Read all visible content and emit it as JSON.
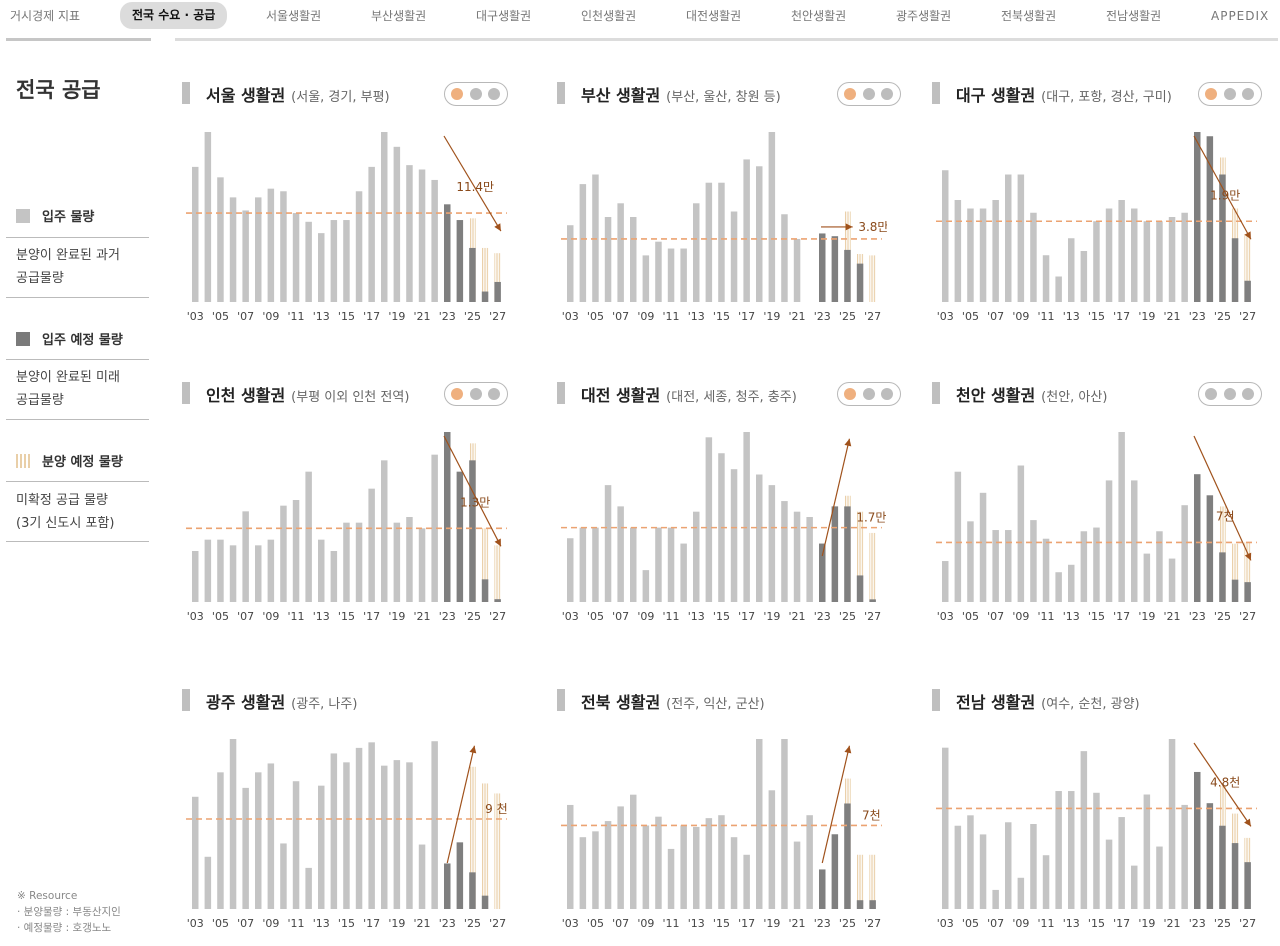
{
  "nav": {
    "items": [
      {
        "label": "거시경제 지표",
        "active": false
      },
      {
        "label": "전국 수요 · 공급",
        "active": true
      },
      {
        "label": "서울생활권",
        "active": false
      },
      {
        "label": "부산생활권",
        "active": false
      },
      {
        "label": "대구생활권",
        "active": false
      },
      {
        "label": "인천생활권",
        "active": false
      },
      {
        "label": "대전생활권",
        "active": false
      },
      {
        "label": "천안생활권",
        "active": false
      },
      {
        "label": "광주생활권",
        "active": false
      },
      {
        "label": "전북생활권",
        "active": false
      },
      {
        "label": "전남생활권",
        "active": false
      },
      {
        "label": "APPEDIX",
        "active": false
      }
    ]
  },
  "sidebar": {
    "title": "전국 공급",
    "legend": [
      {
        "label": "입주 물량",
        "swatch": "light",
        "desc": [
          "분양이 완료된 과거",
          "공급물량"
        ]
      },
      {
        "label": "입주 예정 물량",
        "swatch": "dark",
        "desc": [
          "분양이 완료된 미래",
          "공급물량"
        ]
      },
      {
        "label": "분양 예정 물량",
        "swatch": "hatched",
        "desc": [
          "미확정 공급 물량",
          "(3기 신도시 포함)"
        ]
      }
    ],
    "resource": {
      "title": "※ Resource",
      "lines": [
        "· 분양물량 : 부동산지인",
        "· 예정물량 : 호갱노노"
      ]
    }
  },
  "colors": {
    "bar_past": "#c4c4c4",
    "bar_planned": "#7f7f7f",
    "bar_upcoming": "#e9cfa8",
    "average_line": "#eba372",
    "trend_arrow": "#a0521c",
    "annotation_text": "#8a4a1b",
    "dot_active": "#efb07f",
    "dot_inactive": "#bdbdbd"
  },
  "chart_data": [
    {
      "type": "bar",
      "title": "서울 생활권",
      "subtitle": "(서울, 경기, 부평)",
      "x_tick_labels": [
        "'03",
        "'05",
        "'07",
        "'09",
        "'11",
        "'13",
        "'15",
        "'17",
        "'19",
        "'21",
        "'23",
        "'25",
        "'27"
      ],
      "years": [
        2003,
        2004,
        2005,
        2006,
        2007,
        2008,
        2009,
        2010,
        2011,
        2012,
        2013,
        2014,
        2015,
        2016,
        2017,
        2018,
        2019,
        2020,
        2021,
        2022,
        2023,
        2024,
        2025,
        2026,
        2027
      ],
      "past": [
        15.5,
        19.5,
        14.3,
        12,
        10.5,
        12,
        13,
        12.7,
        10.2,
        9.2,
        7.9,
        9.4,
        9.4,
        12.7,
        15.5,
        19.5,
        17.8,
        15.7,
        15.2,
        14,
        11.2,
        null,
        null,
        null,
        null
      ],
      "planned": [
        null,
        null,
        null,
        null,
        null,
        null,
        null,
        null,
        null,
        null,
        null,
        null,
        null,
        null,
        null,
        null,
        null,
        null,
        null,
        null,
        11.2,
        9.4,
        6.2,
        1.2,
        2.3
      ],
      "upcoming": [
        null,
        null,
        null,
        null,
        null,
        null,
        null,
        null,
        null,
        null,
        null,
        null,
        null,
        null,
        null,
        null,
        null,
        null,
        null,
        null,
        null,
        null,
        9.6,
        6.2,
        5.6
      ],
      "average": 10.2,
      "annotation": "11.4만",
      "active_dots": 1,
      "trend": "down"
    },
    {
      "type": "bar",
      "title": "부산 생활권",
      "subtitle": "(부산, 울산, 창원 등)",
      "x_tick_labels": [
        "'03",
        "'05",
        "'07",
        "'09",
        "'11",
        "'13",
        "'15",
        "'17",
        "'19",
        "'21",
        "'23",
        "'25",
        "'27"
      ],
      "years": [
        2003,
        2004,
        2005,
        2006,
        2007,
        2008,
        2009,
        2010,
        2011,
        2012,
        2013,
        2014,
        2015,
        2016,
        2017,
        2018,
        2019,
        2020,
        2021,
        2022,
        2023,
        2024,
        2025,
        2026,
        2027
      ],
      "past": [
        5.6,
        8.6,
        9.3,
        6.2,
        7.2,
        6.2,
        3.4,
        4.4,
        3.9,
        3.9,
        7.2,
        8.7,
        8.7,
        6.6,
        10.4,
        9.9,
        12.4,
        6.4,
        4.6,
        null,
        null,
        null,
        null,
        null,
        null
      ],
      "planned": [
        null,
        null,
        null,
        null,
        null,
        null,
        null,
        null,
        null,
        null,
        null,
        null,
        null,
        null,
        null,
        null,
        null,
        null,
        null,
        null,
        5,
        4.8,
        3.8,
        2.8,
        null
      ],
      "upcoming": [
        null,
        null,
        null,
        null,
        null,
        null,
        null,
        null,
        null,
        null,
        null,
        null,
        null,
        null,
        null,
        null,
        null,
        null,
        null,
        null,
        null,
        null,
        6.6,
        3.5,
        3.4
      ],
      "average": 4.6,
      "annotation": "3.8만",
      "active_dots": 1,
      "trend": "flat"
    },
    {
      "type": "bar",
      "title": "대구 생활권",
      "subtitle": "(대구, 포항, 경산, 구미)",
      "x_tick_labels": [
        "'03",
        "'05",
        "'07",
        "'09",
        "'11",
        "'13",
        "'15",
        "'17",
        "'19",
        "'21",
        "'23",
        "'25",
        "'27"
      ],
      "years": [
        2003,
        2004,
        2005,
        2006,
        2007,
        2008,
        2009,
        2010,
        2011,
        2012,
        2013,
        2014,
        2015,
        2016,
        2017,
        2018,
        2019,
        2020,
        2021,
        2022,
        2023,
        2024,
        2025,
        2026,
        2027
      ],
      "past": [
        3.1,
        2.4,
        2.2,
        2.2,
        2.4,
        3,
        3,
        2.1,
        1.1,
        0.6,
        1.5,
        1.2,
        1.9,
        2.2,
        2.4,
        2.2,
        1.9,
        1.9,
        2,
        2.1,
        null,
        null,
        null,
        null,
        null
      ],
      "planned": [
        null,
        null,
        null,
        null,
        null,
        null,
        null,
        null,
        null,
        null,
        null,
        null,
        null,
        null,
        null,
        null,
        null,
        null,
        null,
        null,
        4,
        3.9,
        3,
        1.5,
        0.5
      ],
      "upcoming": [
        null,
        null,
        null,
        null,
        null,
        null,
        null,
        null,
        null,
        null,
        null,
        null,
        null,
        null,
        null,
        null,
        null,
        null,
        null,
        null,
        null,
        null,
        3.4,
        2.2,
        1.6
      ],
      "average": 1.9,
      "annotation": "1.9만",
      "active_dots": 1,
      "trend": "down"
    },
    {
      "type": "bar",
      "title": "인천 생활권",
      "subtitle": "(부평 이외 인천 전역)",
      "x_tick_labels": [
        "'03",
        "'05",
        "'07",
        "'09",
        "'11",
        "'13",
        "'15",
        "'17",
        "'19",
        "'21",
        "'23",
        "'25",
        "'27"
      ],
      "years": [
        2003,
        2004,
        2005,
        2006,
        2007,
        2008,
        2009,
        2010,
        2011,
        2012,
        2013,
        2014,
        2015,
        2016,
        2017,
        2018,
        2019,
        2020,
        2021,
        2022,
        2023,
        2024,
        2025,
        2026,
        2027
      ],
      "past": [
        0.9,
        1.1,
        1.1,
        1,
        1.6,
        1,
        1.1,
        1.7,
        1.8,
        2.3,
        1.1,
        0.9,
        1.4,
        1.4,
        2,
        2.5,
        1.4,
        1.5,
        1.3,
        2.6,
        null,
        null,
        null,
        null,
        null
      ],
      "planned": [
        null,
        null,
        null,
        null,
        null,
        null,
        null,
        null,
        null,
        null,
        null,
        null,
        null,
        null,
        null,
        null,
        null,
        null,
        null,
        null,
        3,
        2.3,
        2.5,
        0.4,
        0.05
      ],
      "upcoming": [
        null,
        null,
        null,
        null,
        null,
        null,
        null,
        null,
        null,
        null,
        null,
        null,
        null,
        null,
        null,
        null,
        null,
        null,
        null,
        null,
        null,
        null,
        2.8,
        1.3,
        1
      ],
      "average": 1.3,
      "annotation": "1.3만",
      "active_dots": 1,
      "trend": "down"
    },
    {
      "type": "bar",
      "title": "대전 생활권",
      "subtitle": "(대전, 세종, 청주, 충주)",
      "x_tick_labels": [
        "'03",
        "'05",
        "'07",
        "'09",
        "'11",
        "'13",
        "'15",
        "'17",
        "'19",
        "'21",
        "'23",
        "'25",
        "'27"
      ],
      "years": [
        2003,
        2004,
        2005,
        2006,
        2007,
        2008,
        2009,
        2010,
        2011,
        2012,
        2013,
        2014,
        2015,
        2016,
        2017,
        2018,
        2019,
        2020,
        2021,
        2022,
        2023,
        2024,
        2025,
        2026,
        2027
      ],
      "past": [
        1.2,
        1.4,
        1.4,
        2.2,
        1.8,
        1.4,
        0.6,
        1.4,
        1.4,
        1.1,
        1.7,
        3.1,
        2.8,
        2.5,
        3.2,
        2.4,
        2.2,
        1.9,
        1.7,
        1.6,
        null,
        null,
        null,
        null,
        null
      ],
      "planned": [
        null,
        null,
        null,
        null,
        null,
        null,
        null,
        null,
        null,
        null,
        null,
        null,
        null,
        null,
        null,
        null,
        null,
        null,
        null,
        null,
        1.1,
        1.8,
        1.8,
        0.5,
        0.05
      ],
      "upcoming": [
        null,
        null,
        null,
        null,
        null,
        null,
        null,
        null,
        null,
        null,
        null,
        null,
        null,
        null,
        null,
        null,
        null,
        null,
        null,
        null,
        null,
        null,
        2,
        1.7,
        1.3
      ],
      "average": 1.4,
      "annotation": "1.7만",
      "active_dots": 1,
      "trend": "up"
    },
    {
      "type": "bar",
      "title": "천안 생활권",
      "subtitle": "(천안, 아산)",
      "x_tick_labels": [
        "'03",
        "'05",
        "'07",
        "'09",
        "'11",
        "'13",
        "'15",
        "'17",
        "'19",
        "'21",
        "'23",
        "'25",
        "'27"
      ],
      "years": [
        2003,
        2004,
        2005,
        2006,
        2007,
        2008,
        2009,
        2010,
        2011,
        2012,
        2013,
        2014,
        2015,
        2016,
        2017,
        2018,
        2019,
        2020,
        2021,
        2022,
        2023,
        2024,
        2025,
        2026,
        2027
      ],
      "past": [
        3.3,
        10.5,
        6.5,
        8.8,
        5.8,
        5.8,
        11,
        6.6,
        5.1,
        2.4,
        3,
        5.7,
        6,
        9.8,
        13.7,
        9.8,
        3.9,
        5.7,
        3.5,
        7.8,
        null,
        null,
        null,
        null,
        null
      ],
      "planned": [
        null,
        null,
        null,
        null,
        null,
        null,
        null,
        null,
        null,
        null,
        null,
        null,
        null,
        null,
        null,
        null,
        null,
        null,
        null,
        null,
        10.3,
        8.6,
        4,
        1.8,
        1.6
      ],
      "upcoming": [
        null,
        null,
        null,
        null,
        null,
        null,
        null,
        null,
        null,
        null,
        null,
        null,
        null,
        null,
        null,
        null,
        null,
        null,
        null,
        null,
        null,
        null,
        7.7,
        4.7,
        4.8
      ],
      "average": 4.8,
      "annotation": "7천",
      "active_dots": 0,
      "trend": "down"
    },
    {
      "type": "bar",
      "title": "광주 생활권",
      "subtitle": "(광주, 나주)",
      "x_tick_labels": [
        "'03",
        "'05",
        "'07",
        "'09",
        "'11",
        "'13",
        "'15",
        "'17",
        "'19",
        "'21",
        "'23",
        "'25",
        "'27"
      ],
      "years": [
        2003,
        2004,
        2005,
        2006,
        2007,
        2008,
        2009,
        2010,
        2011,
        2012,
        2013,
        2014,
        2015,
        2016,
        2017,
        2018,
        2019,
        2020,
        2021,
        2022,
        2023,
        2024,
        2025,
        2026,
        2027
      ],
      "past": [
        10.1,
        4.7,
        12.3,
        15.3,
        10.9,
        12.3,
        13.1,
        5.9,
        11.5,
        3.7,
        11.1,
        14,
        13.2,
        14.5,
        15,
        12.9,
        13.4,
        13.2,
        5.8,
        15.1,
        null,
        null,
        null,
        null,
        null
      ],
      "planned": [
        null,
        null,
        null,
        null,
        null,
        null,
        null,
        null,
        null,
        null,
        null,
        null,
        null,
        null,
        null,
        null,
        null,
        null,
        null,
        null,
        4.1,
        6,
        3.3,
        1.2,
        null
      ],
      "upcoming": [
        null,
        null,
        null,
        null,
        null,
        null,
        null,
        null,
        null,
        null,
        null,
        null,
        null,
        null,
        null,
        null,
        null,
        null,
        null,
        null,
        null,
        null,
        12.8,
        11.3,
        10.4
      ],
      "average": 8.1,
      "annotation": "9 천",
      "active_dots": 0,
      "trend": "up"
    },
    {
      "type": "bar",
      "title": "전북 생활권",
      "subtitle": "(전주, 익산, 군산)",
      "x_tick_labels": [
        "'03",
        "'05",
        "'07",
        "'09",
        "'11",
        "'13",
        "'15",
        "'17",
        "'19",
        "'21",
        "'23",
        "'25",
        "'27"
      ],
      "years": [
        2003,
        2004,
        2005,
        2006,
        2007,
        2008,
        2009,
        2010,
        2011,
        2012,
        2013,
        2014,
        2015,
        2016,
        2017,
        2018,
        2019,
        2020,
        2021,
        2022,
        2023,
        2024,
        2025,
        2026,
        2027
      ],
      "past": [
        7.1,
        4.9,
        5.3,
        6,
        7,
        7.8,
        5.7,
        6.3,
        4.1,
        5.7,
        5.6,
        6.2,
        6.4,
        4.9,
        3.7,
        11.6,
        8.1,
        11.6,
        4.6,
        6.4,
        null,
        null,
        null,
        null,
        null
      ],
      "planned": [
        null,
        null,
        null,
        null,
        null,
        null,
        null,
        null,
        null,
        null,
        null,
        null,
        null,
        null,
        null,
        null,
        null,
        null,
        null,
        null,
        2.7,
        5.1,
        7.2,
        0.6,
        0.6
      ],
      "upcoming": [
        null,
        null,
        null,
        null,
        null,
        null,
        null,
        null,
        null,
        null,
        null,
        null,
        null,
        null,
        null,
        null,
        null,
        null,
        null,
        null,
        null,
        null,
        8.9,
        3.7,
        3.7
      ],
      "average": 5.7,
      "annotation": "7천",
      "active_dots": 0,
      "trend": "up"
    },
    {
      "type": "bar",
      "title": "전남 생활권",
      "subtitle": "(여수, 순천, 광양)",
      "x_tick_labels": [
        "'03",
        "'05",
        "'07",
        "'09",
        "'11",
        "'13",
        "'15",
        "'17",
        "'19",
        "'21",
        "'23",
        "'25",
        "'27"
      ],
      "years": [
        2003,
        2004,
        2005,
        2006,
        2007,
        2008,
        2009,
        2010,
        2011,
        2012,
        2013,
        2014,
        2015,
        2016,
        2017,
        2018,
        2019,
        2020,
        2021,
        2022,
        2023,
        2024,
        2025,
        2026,
        2027
      ],
      "past": [
        9.3,
        4.8,
        5.4,
        4.3,
        1.1,
        5,
        1.8,
        4.9,
        3.1,
        6.8,
        6.8,
        9.1,
        6.7,
        4,
        5.3,
        2.5,
        6.6,
        3.6,
        9.8,
        6,
        null,
        null,
        null,
        null,
        null
      ],
      "planned": [
        null,
        null,
        null,
        null,
        null,
        null,
        null,
        null,
        null,
        null,
        null,
        null,
        null,
        null,
        null,
        null,
        null,
        null,
        null,
        null,
        7.9,
        6.1,
        4.8,
        3.8,
        2.7
      ],
      "upcoming": [
        null,
        null,
        null,
        null,
        null,
        null,
        null,
        null,
        null,
        null,
        null,
        null,
        null,
        null,
        null,
        null,
        null,
        null,
        null,
        null,
        null,
        null,
        7.1,
        5.5,
        4.1
      ],
      "average": 5.8,
      "annotation": "4.8천",
      "active_dots": 0,
      "trend": "down"
    }
  ]
}
